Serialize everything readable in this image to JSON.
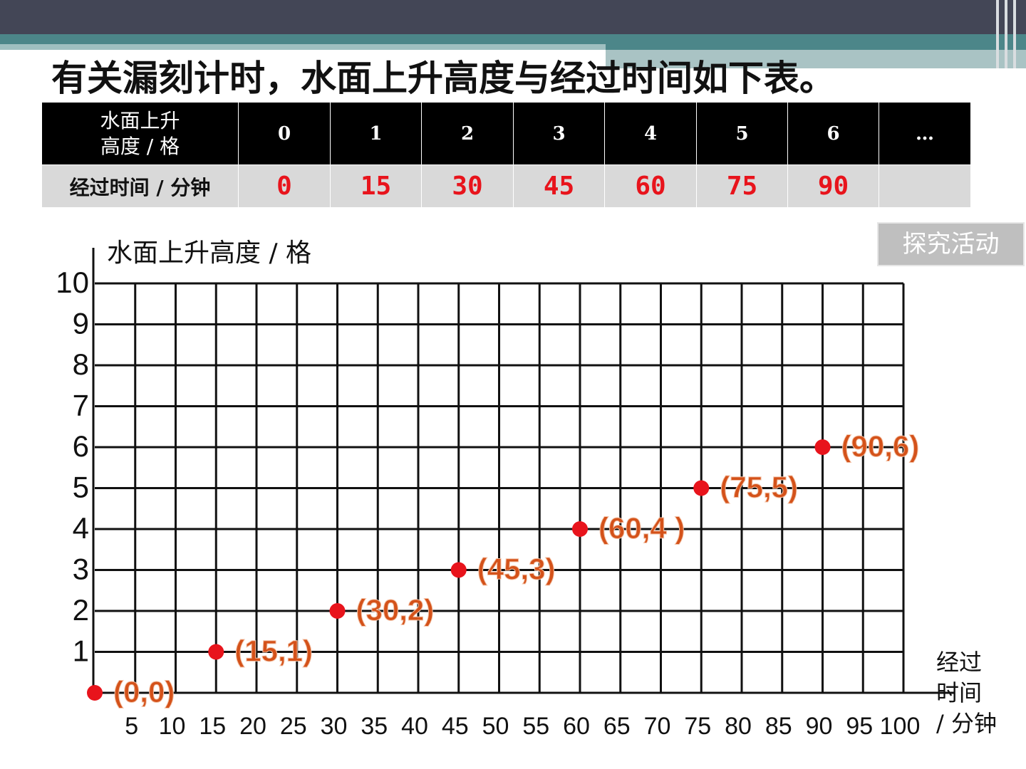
{
  "header": {
    "title": "有关漏刻计时，水面上升高度与经过时间如下表。"
  },
  "table": {
    "rows": [
      [
        [
          "水面上升",
          "高度 / 格"
        ],
        0,
        1,
        2,
        3,
        4,
        5,
        6,
        "…"
      ],
      [
        "经过时间 / 分钟",
        0,
        15,
        30,
        45,
        60,
        75,
        90
      ]
    ]
  },
  "button": "探究活动",
  "chart_data": {
    "type": "scatter",
    "ylabel": "水面上升高度 / 格",
    "xlabel": [
      "经过",
      "时间",
      "/ 分钟"
    ],
    "xlim": [
      0,
      100
    ],
    "ylim": [
      0,
      10
    ],
    "xticks": [
      5,
      10,
      15,
      20,
      25,
      30,
      35,
      40,
      45,
      50,
      55,
      60,
      65,
      70,
      75,
      80,
      85,
      90,
      95,
      100
    ],
    "yticks": [
      1,
      2,
      3,
      4,
      5,
      6,
      7,
      8,
      9,
      10
    ],
    "grid": true,
    "series": [
      {
        "color": "#e8141c",
        "x": [
          0,
          15,
          30,
          45,
          60,
          75,
          90
        ],
        "values": [
          0,
          1,
          2,
          3,
          4,
          5,
          6
        ],
        "value_labels": [
          "(0,0)",
          "(15,1)",
          "(30,2)",
          "(45,3)",
          "(60,4 )",
          "(75,5)",
          "(90,6)"
        ]
      }
    ]
  }
}
